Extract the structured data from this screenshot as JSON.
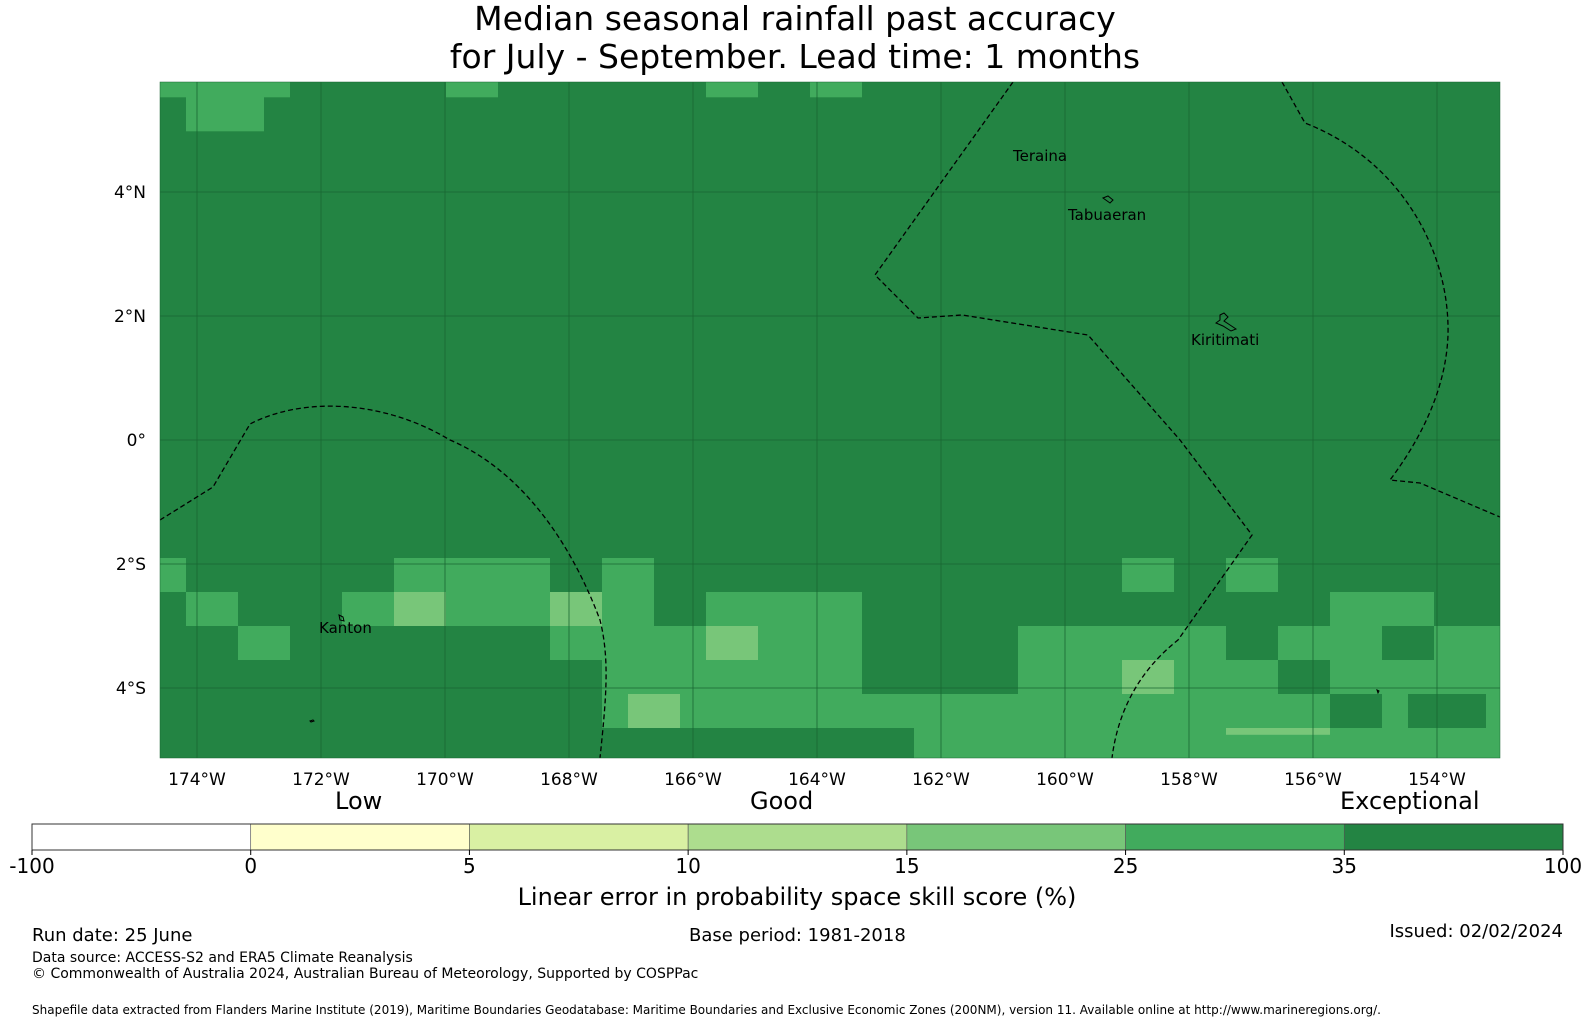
{
  "title": {
    "line1": "Median seasonal rainfall past accuracy",
    "line2": "for July - September. Lead time: 1 months"
  },
  "map": {
    "lat_labels": [
      "4°N",
      "2°N",
      "0°",
      "2°S",
      "4°S"
    ],
    "lon_labels": [
      "174°W",
      "172°W",
      "170°W",
      "168°W",
      "166°W",
      "164°W",
      "162°W",
      "160°W",
      "158°W",
      "156°W",
      "154°W"
    ],
    "places": [
      "Teraina",
      "Tabuaeran",
      "Kiritimati",
      "Kanton"
    ],
    "colors": {
      "c35_100": "#238443",
      "c25_35": "#41ab5d",
      "c15_25": "#78c679",
      "gridline": "#1a6633",
      "eez_line": "#000000"
    }
  },
  "colorbar": {
    "categories": [
      "Low",
      "Good",
      "Exceptional"
    ],
    "ticks": [
      "-100",
      "0",
      "5",
      "10",
      "15",
      "25",
      "35",
      "100"
    ],
    "colors": [
      "#ffffff",
      "#ffffcc",
      "#d9f0a3",
      "#addd8e",
      "#78c679",
      "#41ab5d",
      "#238443"
    ],
    "label": "Linear error in probability space skill score (%)"
  },
  "footer": {
    "run_date": "Run date: 25 June",
    "base_period": "Base period: 1981-2018",
    "issued": "Issued: 02/02/2024",
    "data_source": "Data source: ACCESS-S2 and ERA5 Climate Reanalysis",
    "copyright": "© Commonwealth of Australia 2024, Australian Bureau of Meteorology, Supported by COSPPac",
    "shapefile": "Shapefile data extracted from Flanders Marine Institute (2019), Maritime Boundaries Geodatabase: Maritime Boundaries and Exclusive Economic Zones (200NM), version 11. Available online at http://www.marineregions.org/."
  }
}
